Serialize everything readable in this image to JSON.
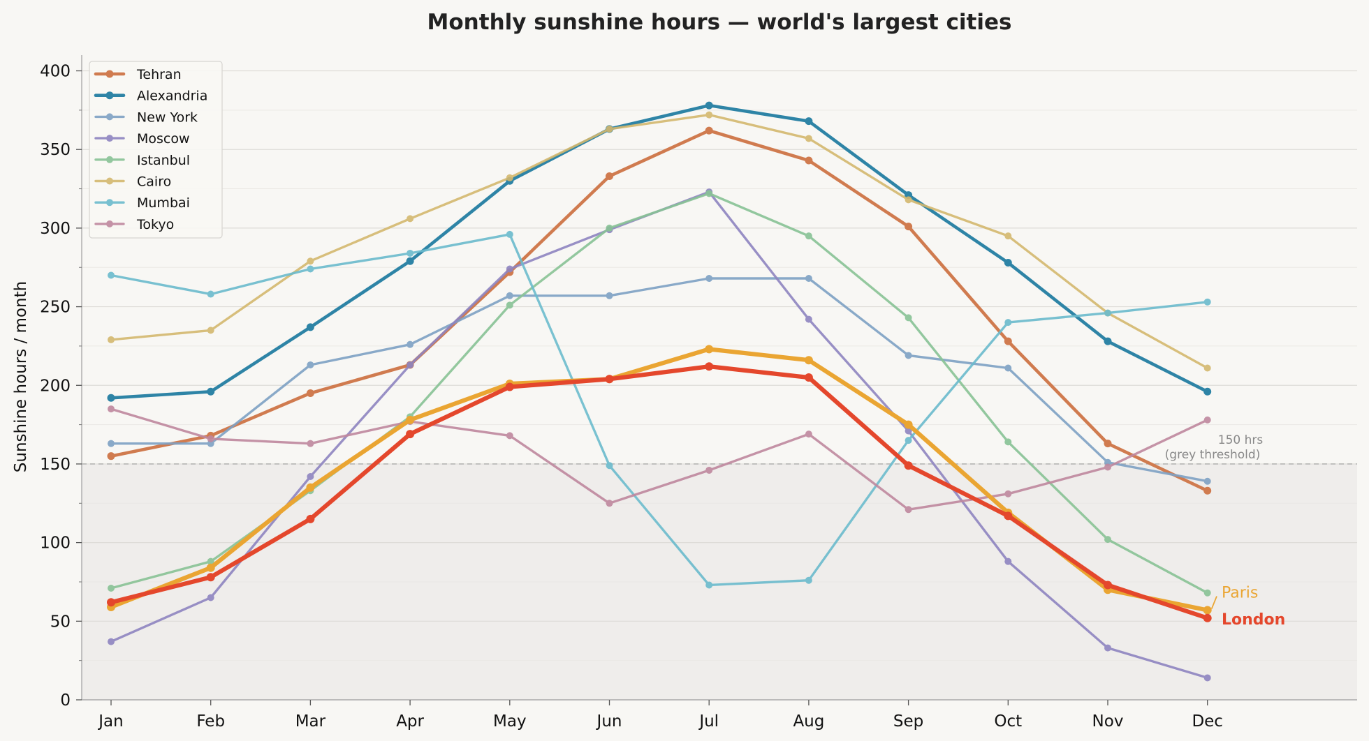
{
  "chart_data": {
    "type": "line",
    "title": "Monthly sunshine hours — world's largest cities",
    "xlabel": "",
    "ylabel": "Sunshine hours / month",
    "ylim": [
      0,
      410
    ],
    "yticks": [
      0,
      50,
      100,
      150,
      200,
      250,
      300,
      350,
      400
    ],
    "categories": [
      "Jan",
      "Feb",
      "Mar",
      "Apr",
      "May",
      "Jun",
      "Jul",
      "Aug",
      "Sep",
      "Oct",
      "Nov",
      "Dec"
    ],
    "threshold": {
      "value": 150,
      "label_line1": "150 hrs",
      "label_line2": "(grey threshold)"
    },
    "legend_position": "top-left",
    "series": [
      {
        "name": "Tehran",
        "color": "#d07b4f",
        "values": [
          155,
          168,
          195,
          213,
          272,
          333,
          362,
          343,
          301,
          228,
          163,
          133
        ],
        "in_legend": true,
        "emphasis": "medium"
      },
      {
        "name": "Alexandria",
        "color": "#2e84a6",
        "values": [
          192,
          196,
          237,
          279,
          330,
          363,
          378,
          368,
          321,
          278,
          228,
          196
        ],
        "in_legend": true,
        "emphasis": "medium"
      },
      {
        "name": "New York",
        "color": "#7ea1c4",
        "values": [
          163,
          163,
          213,
          226,
          257,
          257,
          268,
          268,
          219,
          211,
          151,
          139
        ],
        "in_legend": true,
        "emphasis": "low"
      },
      {
        "name": "Moscow",
        "color": "#8e84c0",
        "values": [
          37,
          65,
          142,
          213,
          274,
          299,
          323,
          242,
          171,
          88,
          33,
          14
        ],
        "in_legend": true,
        "emphasis": "low"
      },
      {
        "name": "Istanbul",
        "color": "#88c295",
        "values": [
          71,
          88,
          133,
          180,
          251,
          300,
          322,
          295,
          243,
          164,
          102,
          68
        ],
        "in_legend": true,
        "emphasis": "low"
      },
      {
        "name": "Cairo",
        "color": "#d4b86e",
        "values": [
          229,
          235,
          279,
          306,
          332,
          363,
          372,
          357,
          318,
          295,
          246,
          211
        ],
        "in_legend": true,
        "emphasis": "low"
      },
      {
        "name": "Mumbai",
        "color": "#6bbbcd",
        "values": [
          270,
          258,
          274,
          284,
          296,
          149,
          73,
          76,
          165,
          240,
          246,
          253
        ],
        "in_legend": true,
        "emphasis": "low"
      },
      {
        "name": "Tokyo",
        "color": "#bf889e",
        "values": [
          185,
          166,
          163,
          177,
          168,
          125,
          146,
          169,
          121,
          131,
          148,
          178
        ],
        "in_legend": true,
        "emphasis": "low"
      },
      {
        "name": "Paris",
        "color": "#eaa532",
        "values": [
          59,
          84,
          135,
          178,
          201,
          204,
          223,
          216,
          175,
          119,
          70,
          57
        ],
        "in_legend": false,
        "emphasis": "high"
      },
      {
        "name": "London",
        "color": "#e4472c",
        "values": [
          62,
          78,
          115,
          169,
          199,
          204,
          212,
          205,
          149,
          117,
          73,
          52
        ],
        "in_legend": false,
        "emphasis": "high"
      }
    ],
    "end_labels": [
      {
        "series": "Paris",
        "text": "Paris",
        "bold": false
      },
      {
        "series": "London",
        "text": "London",
        "bold": true
      }
    ]
  }
}
